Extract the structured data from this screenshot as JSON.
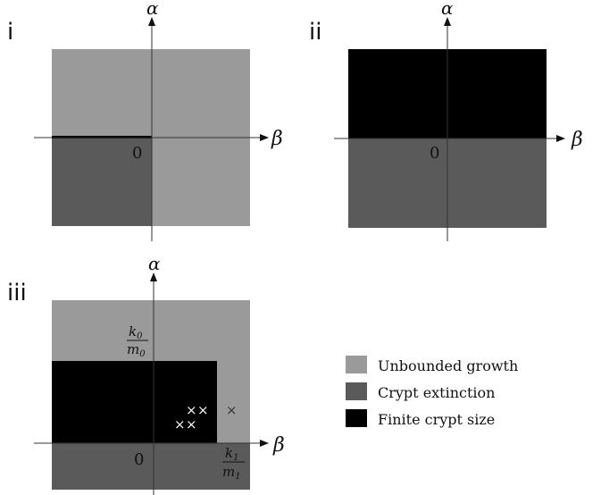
{
  "colors": {
    "unbounded": "#9a9a9a",
    "extinction": "#5a5a5a",
    "finite": "#000000",
    "axis": "#333333",
    "cross_light": "#ffffff",
    "cross_dark": "#333333"
  },
  "panels": [
    {
      "id": "i",
      "label": "i",
      "x_axis": "β",
      "y_axis": "α",
      "origin": "0"
    },
    {
      "id": "ii",
      "label": "ii",
      "x_axis": "β",
      "y_axis": "α",
      "origin": "0"
    },
    {
      "id": "iii",
      "label": "iii",
      "x_axis": "β",
      "y_axis": "α",
      "origin": "0",
      "k0_num": "k",
      "k0_sub": "0",
      "m0_den": "m",
      "m0_sub": "0",
      "k1_num": "k",
      "k1_sub": "1",
      "m1_den": "m",
      "m1_sub": "1",
      "cross": "×"
    }
  ],
  "legend": [
    {
      "key": "unbounded",
      "label": "Unbounded growth"
    },
    {
      "key": "extinction",
      "label": "Crypt extinction"
    },
    {
      "key": "finite",
      "label": "Finite crypt size"
    }
  ]
}
